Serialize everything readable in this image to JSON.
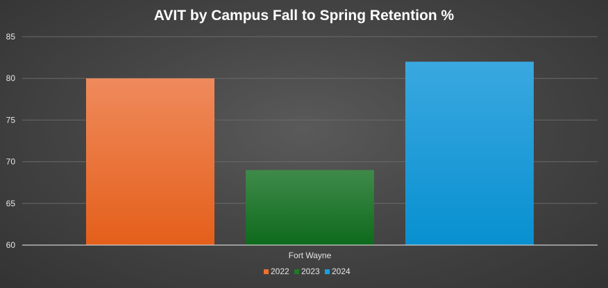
{
  "chart_data": {
    "type": "bar",
    "title": "AVIT by Campus Fall to Spring Retention %",
    "categories": [
      "Fort Wayne"
    ],
    "series": [
      {
        "name": "2022",
        "values": [
          80
        ],
        "color": "#f07030"
      },
      {
        "name": "2023",
        "values": [
          69
        ],
        "color": "#1e7a28"
      },
      {
        "name": "2024",
        "values": [
          82
        ],
        "color": "#1aa0e0"
      }
    ],
    "ylim": [
      60,
      85
    ],
    "yticks": [
      60,
      65,
      70,
      75,
      80,
      85
    ],
    "grid": true,
    "legend_position": "bottom"
  }
}
